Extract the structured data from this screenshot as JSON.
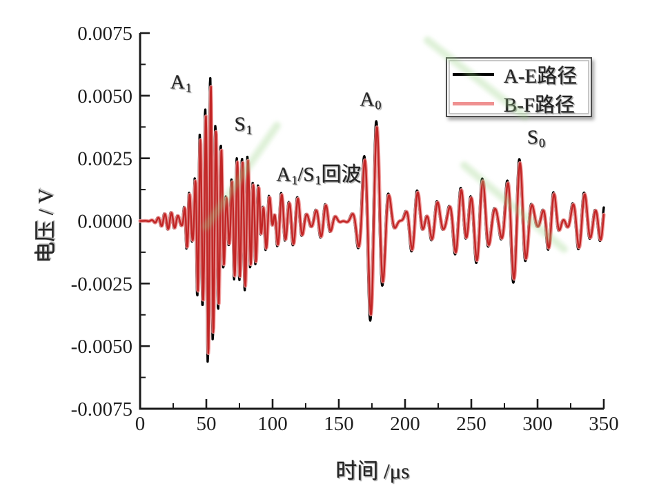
{
  "chart_data": {
    "type": "line",
    "title": "",
    "xlabel": "时间 /μs",
    "ylabel": "电压 / V",
    "xlim": [
      0,
      350
    ],
    "ylim": [
      -0.0075,
      0.0075
    ],
    "grid": false,
    "legend_position": "upper right",
    "x_major_ticks": [
      0,
      50,
      100,
      150,
      200,
      250,
      300,
      350
    ],
    "x_minor_ticks": [
      25,
      75,
      125,
      175,
      225,
      275,
      325
    ],
    "y_major_ticks": [
      0.0075,
      0.005,
      0.0025,
      0.0,
      -0.0025,
      -0.005,
      -0.0075
    ],
    "y_tick_labels": [
      "0.0075",
      "0.0050",
      "0.0025",
      "0.0000",
      "-0.0025",
      "-0.0050",
      "-0.0075"
    ],
    "y_minor_ticks": [
      0.00625,
      0.00375,
      0.00125,
      -0.00125,
      -0.00375,
      -0.00625
    ],
    "series": [
      {
        "name": "A-E路径",
        "color": "#000000",
        "time_shift_us": 0,
        "amplitude_scale": 1.0
      },
      {
        "name": "B-F路径",
        "color": "#c22525",
        "glow_color": "#ef9191",
        "time_shift_us": 0.5,
        "amplitude_scale": 0.94
      }
    ],
    "signal_model": "v(t) = sum over packets of A*exp(-((t-c)/w)^2)*sin(2*pi*(t-c)/T); two receive paths nearly overlap",
    "wave_packets": [
      {
        "center_us": 22,
        "sigma_us": 9,
        "amplitude_v": 0.00035,
        "period_us": 5.0
      },
      {
        "center_us": 36,
        "sigma_us": 3,
        "amplitude_v": 0.0012,
        "period_us": 4.0
      },
      {
        "center_us": 44,
        "sigma_us": 3.5,
        "amplitude_v": 0.003,
        "period_us": 3.8
      },
      {
        "center_us": 52,
        "sigma_us": 5,
        "amplitude_v": 0.0058,
        "period_us": 3.8
      },
      {
        "center_us": 60,
        "sigma_us": 4,
        "amplitude_v": 0.003,
        "period_us": 4.0
      },
      {
        "center_us": 72,
        "sigma_us": 5,
        "amplitude_v": 0.0024,
        "period_us": 4.2
      },
      {
        "center_us": 80,
        "sigma_us": 5,
        "amplitude_v": 0.0026,
        "period_us": 4.4
      },
      {
        "center_us": 88,
        "sigma_us": 4,
        "amplitude_v": 0.0017,
        "period_us": 4.6
      },
      {
        "center_us": 96,
        "sigma_us": 5,
        "amplitude_v": 0.0013,
        "period_us": 5.5
      },
      {
        "center_us": 105,
        "sigma_us": 6,
        "amplitude_v": 0.0012,
        "period_us": 6.5
      },
      {
        "center_us": 117,
        "sigma_us": 7,
        "amplitude_v": 0.001,
        "period_us": 7.0
      },
      {
        "center_us": 138,
        "sigma_us": 8,
        "amplitude_v": 0.0007,
        "period_us": 7.5
      },
      {
        "center_us": 176,
        "sigma_us": 10,
        "amplitude_v": 0.0042,
        "period_us": 9.5
      },
      {
        "center_us": 207,
        "sigma_us": 6,
        "amplitude_v": 0.0014,
        "period_us": 9.5
      },
      {
        "center_us": 222,
        "sigma_us": 6,
        "amplitude_v": 0.0009,
        "period_us": 9.5
      },
      {
        "center_us": 240,
        "sigma_us": 7,
        "amplitude_v": 0.0015,
        "period_us": 9.5
      },
      {
        "center_us": 256,
        "sigma_us": 9,
        "amplitude_v": 0.0018,
        "period_us": 9.5
      },
      {
        "center_us": 284,
        "sigma_us": 10,
        "amplitude_v": 0.0026,
        "period_us": 9.5
      },
      {
        "center_us": 310,
        "sigma_us": 6,
        "amplitude_v": 0.0013,
        "period_us": 9.0
      },
      {
        "center_us": 333,
        "sigma_us": 9,
        "amplitude_v": 0.0012,
        "period_us": 9.0
      },
      {
        "center_us": 349,
        "sigma_us": 5,
        "amplitude_v": 0.0009,
        "period_us": 9.0
      }
    ],
    "annotations": [
      {
        "x_us": 31,
        "y_v": 0.0055,
        "parts": [
          {
            "text": "A"
          },
          {
            "text": "1",
            "sub": true
          }
        ]
      },
      {
        "x_us": 78,
        "y_v": 0.0038,
        "parts": [
          {
            "text": "S"
          },
          {
            "text": "1",
            "sub": true
          }
        ]
      },
      {
        "x_us": 135,
        "y_v": 0.0019,
        "parts": [
          {
            "text": "A"
          },
          {
            "text": "1",
            "sub": true
          },
          {
            "text": "/S"
          },
          {
            "text": "1",
            "sub": true
          },
          {
            "text": "回波"
          }
        ]
      },
      {
        "x_us": 174,
        "y_v": 0.0048,
        "parts": [
          {
            "text": "A"
          },
          {
            "text": "0",
            "sub": true
          }
        ]
      },
      {
        "x_us": 299,
        "y_v": 0.0033,
        "parts": [
          {
            "text": "S"
          },
          {
            "text": "0",
            "sub": true
          }
        ]
      }
    ]
  },
  "legend": {
    "entries": [
      {
        "label": "A-E路径",
        "line_color": "#000000"
      },
      {
        "label": "B-F路径",
        "line_color": "#ef9191"
      }
    ]
  }
}
